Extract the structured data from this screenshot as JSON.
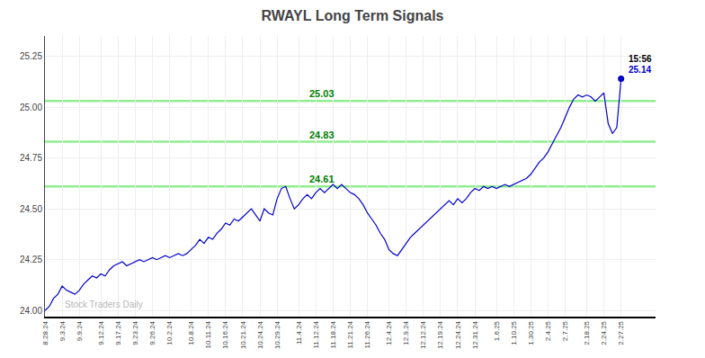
{
  "chart_data": {
    "type": "line",
    "title": "RWAYL Long Term Signals",
    "categories": [
      "8.28.24",
      null,
      null,
      null,
      "9.3.24",
      null,
      null,
      null,
      "9.9.24",
      null,
      null,
      null,
      null,
      "9.12.24",
      null,
      null,
      null,
      "9.17.24",
      null,
      null,
      null,
      "9.23.24",
      null,
      null,
      null,
      "9.26.24",
      null,
      null,
      null,
      "10.2.24",
      null,
      null,
      null,
      null,
      "10.8.24",
      null,
      null,
      null,
      "10.11.24",
      null,
      null,
      null,
      "10.16.24",
      null,
      null,
      null,
      "10.21.24",
      null,
      null,
      null,
      "10.24.24",
      null,
      null,
      null,
      "10.29.24",
      null,
      null,
      null,
      null,
      "11.4.24",
      null,
      null,
      null,
      "11.12.24",
      null,
      null,
      null,
      "11.18.24",
      null,
      null,
      null,
      "11.21.24",
      null,
      null,
      null,
      "11.26.24",
      null,
      null,
      null,
      null,
      "12.4.24",
      null,
      null,
      null,
      "12.9.24",
      null,
      null,
      null,
      "12.12.24",
      null,
      null,
      null,
      "12.19.24",
      null,
      null,
      null,
      "12.24.24",
      null,
      null,
      null,
      "12.31.24",
      null,
      null,
      null,
      null,
      "1.6.25",
      null,
      null,
      null,
      "1.10.25",
      null,
      null,
      null,
      "1.30.25",
      null,
      null,
      null,
      "2.4.25",
      null,
      null,
      null,
      "2.7.25",
      null,
      null,
      null,
      null,
      "2.18.25",
      null,
      null,
      null,
      "2.24.25",
      null,
      null,
      null,
      "2.27.25"
    ],
    "values": [
      24.0,
      24.02,
      24.06,
      24.08,
      24.12,
      24.1,
      24.09,
      24.08,
      24.1,
      24.13,
      24.15,
      24.17,
      24.16,
      24.18,
      24.17,
      24.2,
      24.22,
      24.23,
      24.24,
      24.22,
      24.23,
      24.24,
      24.25,
      24.24,
      24.25,
      24.26,
      24.25,
      24.26,
      24.27,
      24.26,
      24.27,
      24.28,
      24.27,
      24.28,
      24.3,
      24.32,
      24.35,
      24.33,
      24.36,
      24.35,
      24.38,
      24.4,
      24.43,
      24.42,
      24.45,
      24.44,
      24.46,
      24.48,
      24.5,
      24.47,
      24.44,
      24.5,
      24.48,
      24.47,
      24.55,
      24.6,
      24.61,
      24.55,
      24.5,
      24.52,
      24.55,
      24.57,
      24.55,
      24.58,
      24.6,
      24.58,
      24.6,
      24.62,
      24.6,
      24.62,
      24.6,
      24.58,
      24.57,
      24.55,
      24.52,
      24.48,
      24.45,
      24.42,
      24.38,
      24.35,
      24.3,
      24.28,
      24.27,
      24.3,
      24.33,
      24.36,
      24.38,
      24.4,
      24.42,
      24.44,
      24.46,
      24.48,
      24.5,
      24.52,
      24.54,
      24.52,
      24.55,
      24.53,
      24.55,
      24.58,
      24.6,
      24.59,
      24.61,
      24.6,
      24.61,
      24.6,
      24.61,
      24.62,
      24.61,
      24.62,
      24.63,
      24.64,
      24.65,
      24.67,
      24.7,
      24.73,
      24.75,
      24.78,
      24.82,
      24.86,
      24.9,
      24.95,
      25.0,
      25.04,
      25.06,
      25.05,
      25.06,
      25.05,
      25.03,
      25.05,
      25.07,
      24.92,
      24.87,
      24.9,
      25.14
    ],
    "color": "#0000CD",
    "hlines": [
      {
        "y": 25.03,
        "label": "25.03",
        "color": "#90EE90"
      },
      {
        "y": 24.83,
        "label": "24.83",
        "color": "#90EE90"
      },
      {
        "y": 24.61,
        "label": "24.61",
        "color": "#90EE90"
      }
    ],
    "annotations": [
      "15:56",
      "25.14"
    ],
    "watermark": "Stock Traders Daily",
    "ylim": [
      23.97,
      25.35
    ],
    "yticks": [
      {
        "value": 24.0,
        "label": "24.00"
      },
      24.25,
      {
        "value": 24.5,
        "label": "24.50"
      },
      24.75,
      {
        "value": 25.0,
        "label": "25.00"
      },
      25.25
    ],
    "grid": true
  }
}
